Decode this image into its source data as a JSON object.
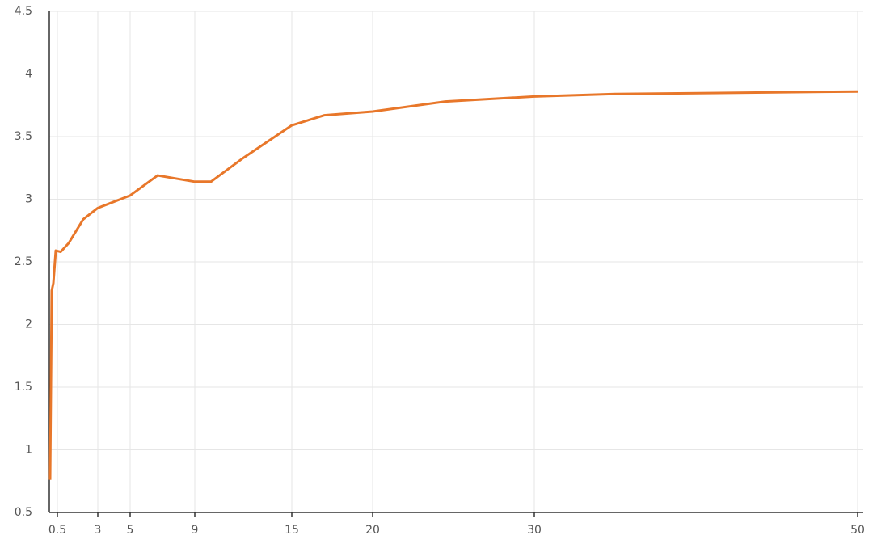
{
  "chart_data": {
    "type": "line",
    "x": [
      0.05,
      0.15,
      0.25,
      0.4,
      0.7,
      1.2,
      2.1,
      3,
      5,
      6.7,
      9,
      10,
      12,
      15,
      17,
      20,
      24.5,
      30,
      35,
      50
    ],
    "series": [
      {
        "color": "#e8772a",
        "values": [
          0.76,
          2.27,
          2.33,
          2.59,
          2.58,
          2.65,
          2.84,
          2.93,
          3.03,
          3.19,
          3.14,
          3.14,
          3.33,
          3.59,
          3.67,
          3.7,
          3.78,
          3.82,
          3.84,
          3.86
        ]
      }
    ],
    "xlim": [
      0,
      50
    ],
    "ylim": [
      0.5,
      4.5
    ],
    "xticks": [
      0.5,
      3,
      5,
      9,
      15,
      20,
      30,
      50
    ],
    "yticks": [
      0.5,
      1,
      1.5,
      2,
      2.5,
      3,
      3.5,
      4,
      4.5
    ],
    "grid": true
  }
}
